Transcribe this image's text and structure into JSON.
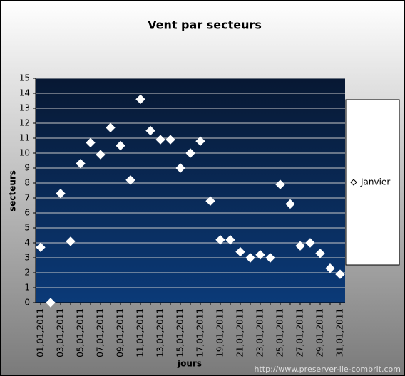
{
  "chart_data": {
    "type": "scatter",
    "title": "Vent par secteurs",
    "x_label": "jours",
    "y_label": "secteurs",
    "categories": [
      "01,01,2011",
      null,
      "03,01,2011",
      null,
      "05,01,2011",
      null,
      "07,01,2011",
      null,
      "09,01,2011",
      null,
      "11,01,2011",
      null,
      "13,01,2011",
      null,
      "15,01,2011",
      null,
      "17,01,2011",
      null,
      "19,01,2011",
      null,
      "21,01,2011",
      null,
      "23,01,2011",
      null,
      "25,01,2011",
      null,
      "27,01,2011",
      null,
      "29,01,2011",
      null,
      "31,01,2011"
    ],
    "series": [
      {
        "name": "Janvier",
        "color": "#ffffff",
        "values": [
          3.7,
          0,
          7.3,
          4.1,
          9.3,
          10.7,
          9.9,
          11.7,
          10.5,
          8.2,
          13.6,
          11.5,
          10.9,
          10.9,
          9.0,
          10.0,
          10.8,
          6.8,
          4.2,
          4.2,
          3.4,
          3.0,
          3.2,
          3.0,
          7.9,
          6.6,
          3.8,
          4.0,
          3.3,
          2.3,
          1.9
        ]
      }
    ],
    "ylim": [
      0,
      15
    ],
    "yticks": [
      0,
      1,
      2,
      3,
      4,
      5,
      6,
      7,
      8,
      9,
      10,
      11,
      12,
      13,
      14,
      15
    ],
    "grid": true,
    "legend": "right",
    "watermark": "http://www.preserver-ile-combrit.com"
  }
}
